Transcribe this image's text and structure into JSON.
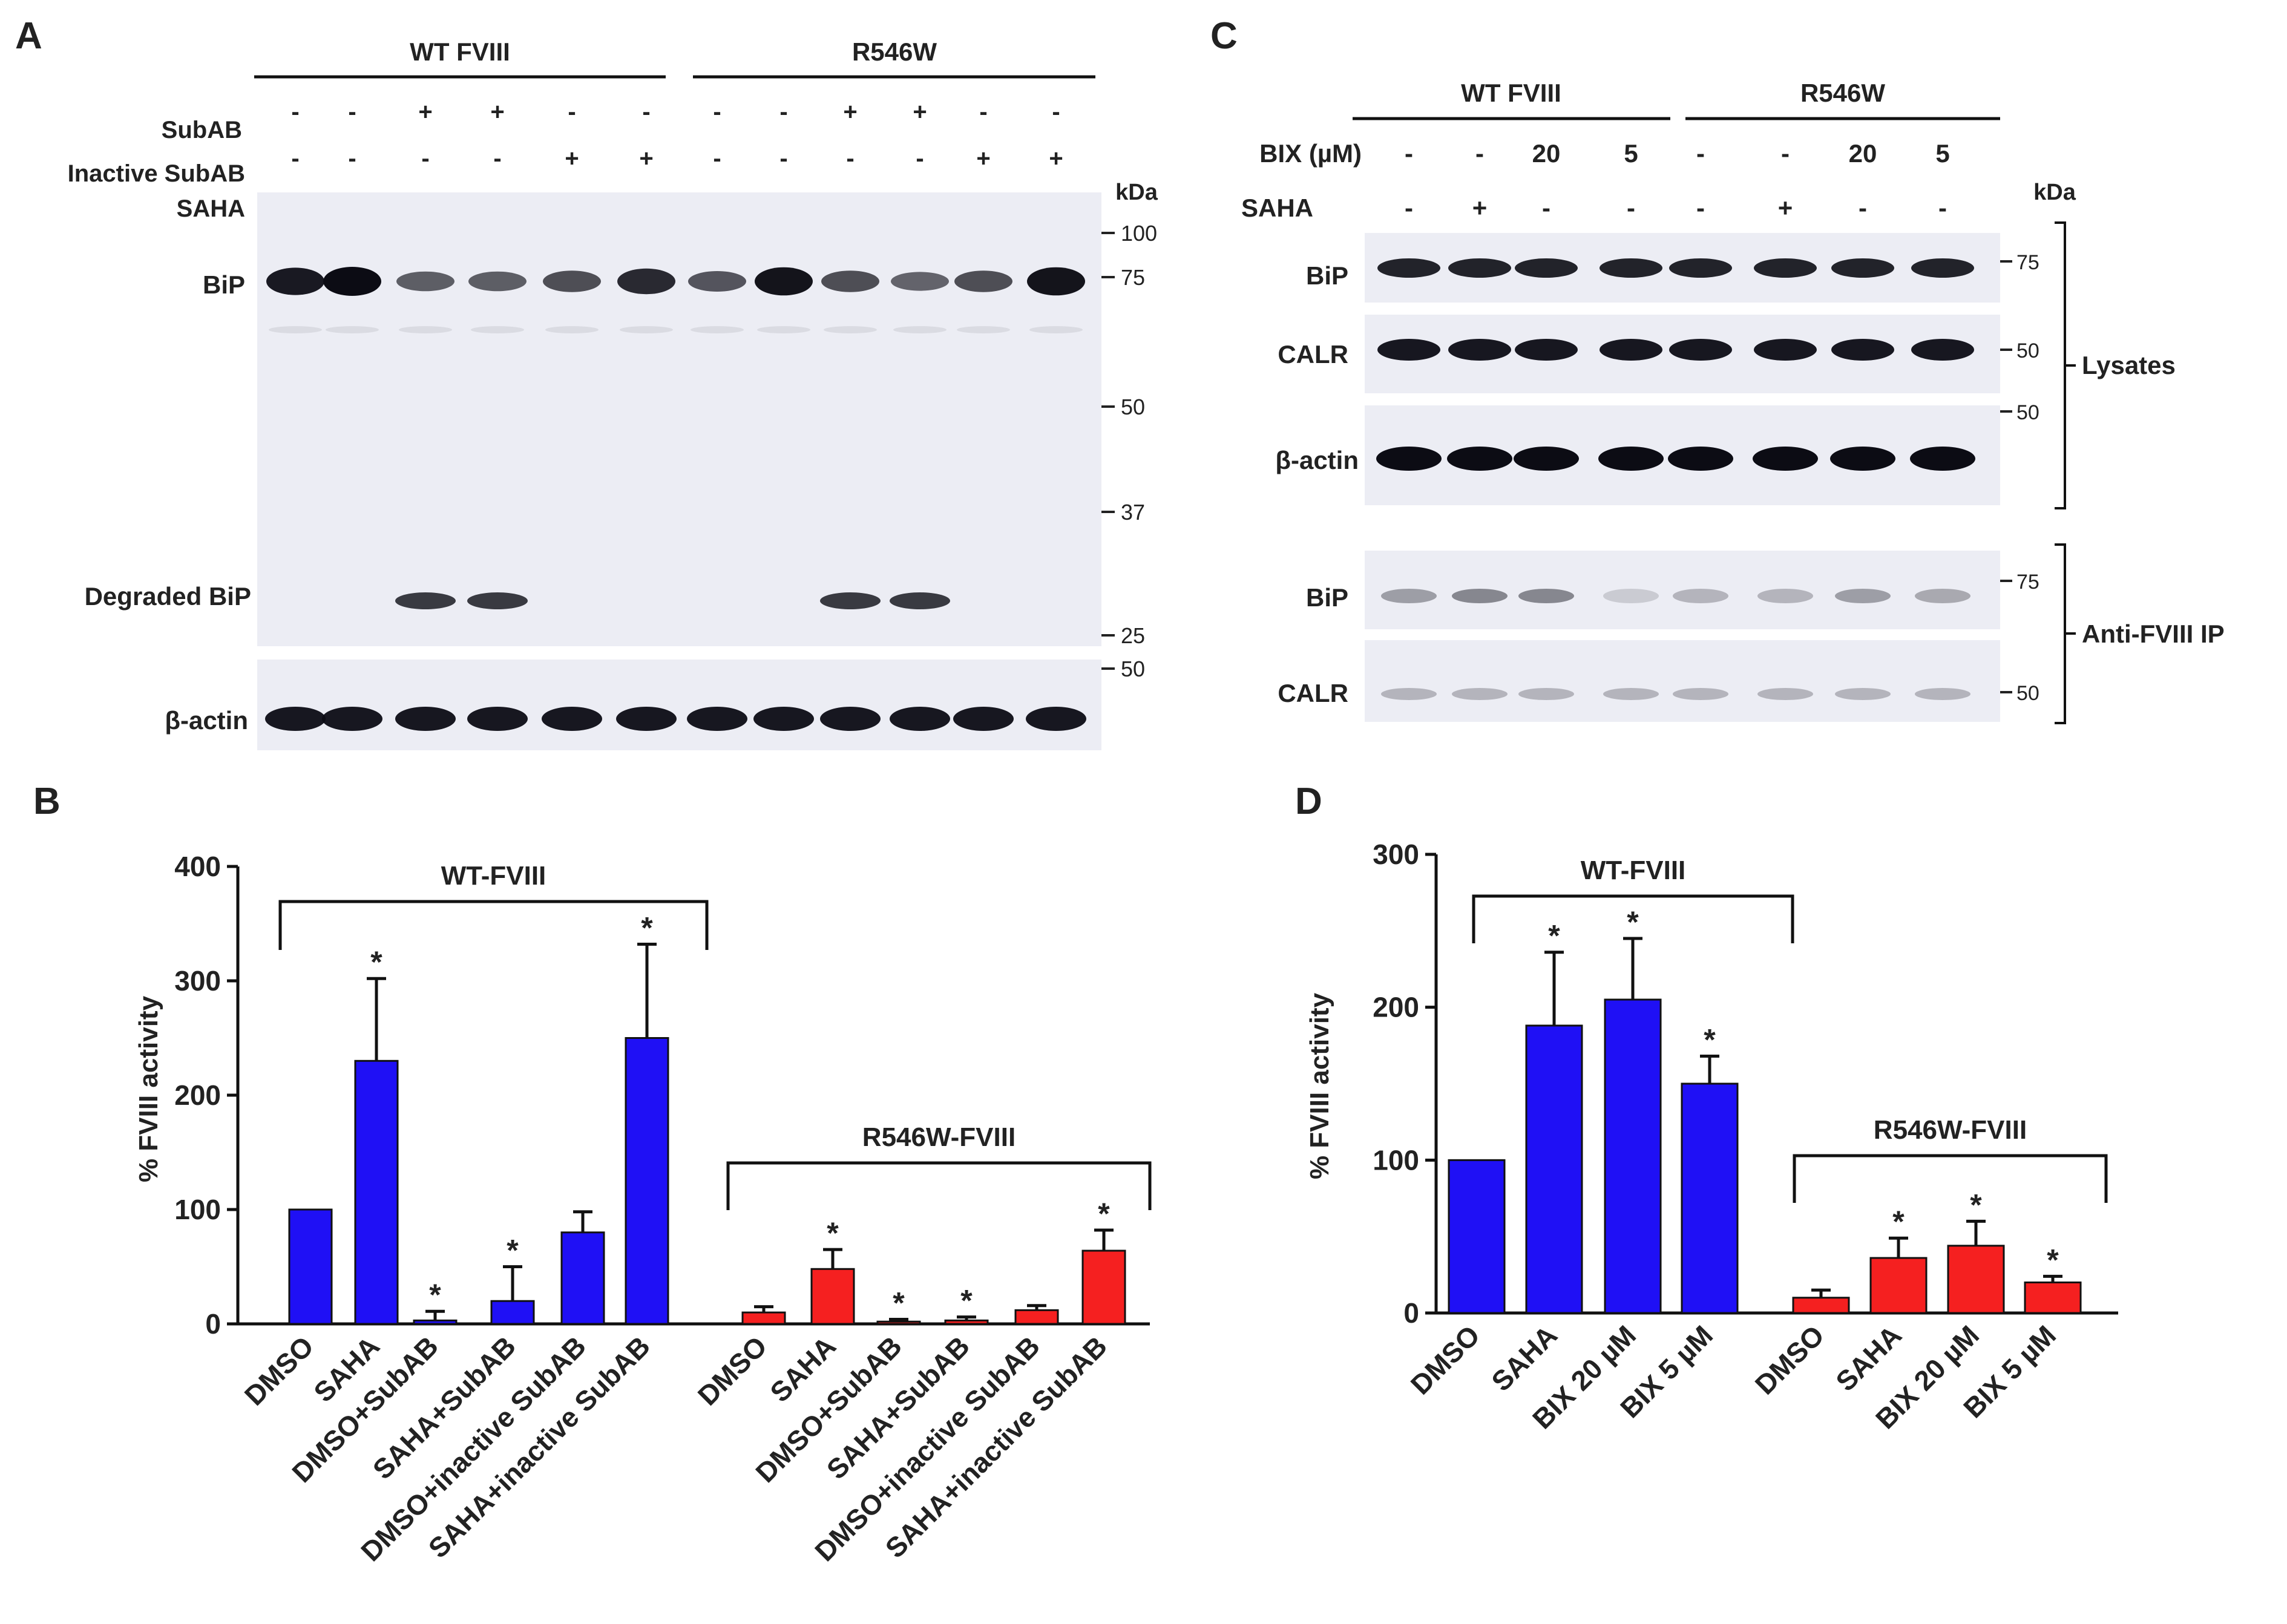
{
  "panel_letters": {
    "a": "A",
    "b": "B",
    "c": "C",
    "d": "D"
  },
  "colors": {
    "wt": "#1f10f5",
    "r546w": "#f52020",
    "blot_bg": "#ecedf4",
    "band": "#0c0c14"
  },
  "panel_a": {
    "group_wt": "WT FVIII",
    "group_mut": "R546W",
    "kda": "kDa",
    "row_labels": {
      "subab": "SubAB",
      "inactive": "Inactive SubAB",
      "saha": "SAHA",
      "bip": "BiP",
      "degraded": "Degraded BiP",
      "actin": "β-actin"
    },
    "subab": [
      "-",
      "-",
      "+",
      "+",
      "-",
      "-",
      "-",
      "-",
      "+",
      "+",
      "-",
      "-"
    ],
    "inactive": [
      "-",
      "-",
      "-",
      "-",
      "+",
      "+",
      "-",
      "-",
      "-",
      "-",
      "+",
      "+"
    ],
    "markers": [
      "100",
      "75",
      "50",
      "37",
      "25",
      "50"
    ],
    "bip_intensity": [
      0.9,
      1.0,
      0.45,
      0.45,
      0.55,
      0.8,
      0.5,
      0.95,
      0.55,
      0.4,
      0.55,
      0.95
    ],
    "degraded_intensity": [
      0,
      0,
      0.8,
      0.8,
      0,
      0,
      0,
      0,
      0.8,
      0.8,
      0,
      0
    ]
  },
  "panel_c": {
    "group_wt": "WT FVIII",
    "group_mut": "R546W",
    "kda": "kDa",
    "row_labels": {
      "bix": "BIX (µM)",
      "saha": "SAHA",
      "bip": "BiP",
      "calr": "CALR",
      "actin": "β-actin",
      "bip_ip": "BiP",
      "calr_ip": "CALR"
    },
    "bix": [
      "-",
      "-",
      "20",
      "5",
      "-",
      "-",
      "20",
      "5"
    ],
    "saha": [
      "-",
      "+",
      "-",
      "-",
      "-",
      "+",
      "-",
      "-"
    ],
    "markers": [
      "75",
      "50",
      "50",
      "75",
      "50"
    ],
    "lysates": "Lysates",
    "ip": "Anti-FVIII IP",
    "bip_ip_intensity": [
      0.35,
      0.45,
      0.45,
      0.15,
      0.25,
      0.25,
      0.35,
      0.3
    ]
  },
  "chart_data": [
    {
      "panel": "B",
      "type": "bar",
      "ylabel": "% FVIII activity",
      "ylim": [
        0,
        400
      ],
      "yticks": [
        "0",
        "100",
        "200",
        "300",
        "400"
      ],
      "groups": [
        {
          "name": "WT-FVIII",
          "categories": [
            "DMSO",
            "SAHA",
            "DMSO+SubAB",
            "SAHA+SubAB",
            "DMSO+inactive SubAB",
            "SAHA+inactive SubAB"
          ],
          "values": [
            100,
            230,
            3,
            20,
            80,
            250
          ],
          "errors": [
            0,
            72,
            8,
            30,
            18,
            82
          ],
          "significant": [
            false,
            true,
            true,
            true,
            false,
            true
          ]
        },
        {
          "name": "R546W-FVIII",
          "categories": [
            "DMSO",
            "SAHA",
            "DMSO+SubAB",
            "SAHA+SubAB",
            "DMSO+inactive SubAB",
            "SAHA+inactive SubAB"
          ],
          "values": [
            10,
            48,
            2,
            3,
            12,
            64
          ],
          "errors": [
            5,
            17,
            2,
            3,
            4,
            18
          ],
          "significant": [
            false,
            true,
            true,
            true,
            false,
            true
          ]
        }
      ],
      "sig_mark": "*"
    },
    {
      "panel": "D",
      "type": "bar",
      "ylabel": "% FVIII activity",
      "ylim": [
        0,
        300
      ],
      "yticks": [
        "0",
        "100",
        "200",
        "300"
      ],
      "groups": [
        {
          "name": "WT-FVIII",
          "categories": [
            "DMSO",
            "SAHA",
            "BIX 20 µM",
            "BIX 5 µM"
          ],
          "values": [
            100,
            188,
            205,
            150
          ],
          "errors": [
            0,
            48,
            40,
            18
          ],
          "significant": [
            false,
            true,
            true,
            true
          ]
        },
        {
          "name": "R546W-FVIII",
          "categories": [
            "DMSO",
            "SAHA",
            "BIX 20 µM",
            "BIX 5 µM"
          ],
          "values": [
            10,
            36,
            44,
            20
          ],
          "errors": [
            5,
            13,
            16,
            4
          ],
          "significant": [
            false,
            true,
            true,
            true
          ]
        }
      ],
      "sig_mark": "*"
    }
  ]
}
